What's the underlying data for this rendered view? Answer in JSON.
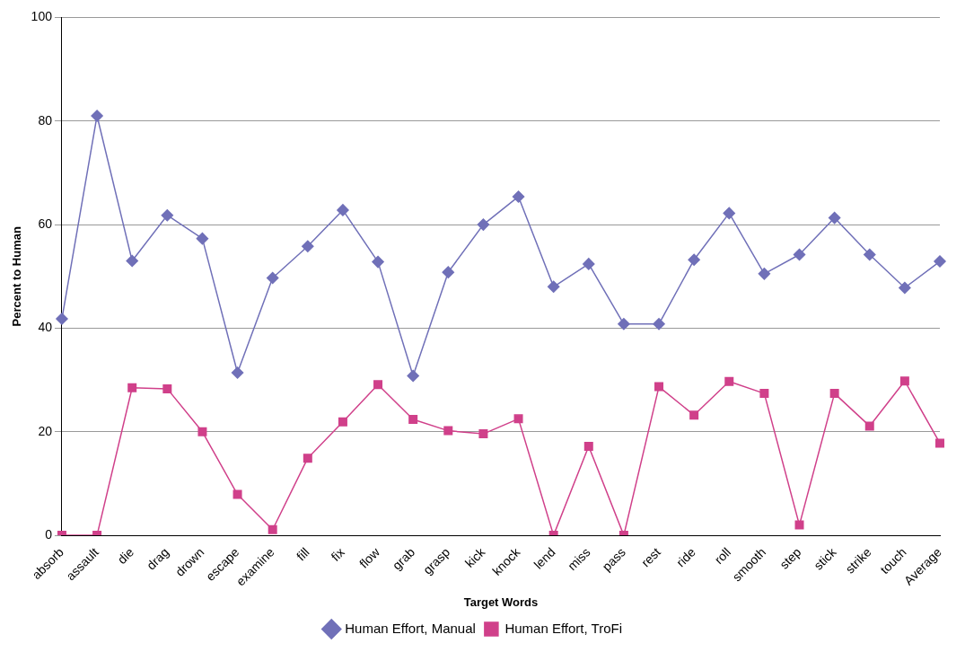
{
  "chart_data": {
    "type": "line",
    "xlabel": "Target Words",
    "ylabel": "Percent to Human",
    "categories": [
      "absorb",
      "assault",
      "die",
      "drag",
      "drown",
      "escape",
      "examine",
      "fill",
      "fix",
      "flow",
      "grab",
      "grasp",
      "kick",
      "knock",
      "lend",
      "miss",
      "pass",
      "rest",
      "ride",
      "roll",
      "smooth",
      "step",
      "stick",
      "strike",
      "touch",
      "Average"
    ],
    "series": [
      {
        "name": "Human Effort, Manual",
        "color": "#7070b8",
        "marker": "diamond",
        "values": [
          41.8,
          81,
          53,
          61.8,
          57.3,
          31.4,
          49.7,
          55.8,
          62.8,
          52.8,
          30.8,
          50.8,
          60,
          65.4,
          48,
          52.4,
          40.8,
          40.8,
          53.2,
          62.2,
          50.5,
          54.2,
          61.3,
          54.2,
          47.8,
          52.9
        ]
      },
      {
        "name": "Human Effort, TroFi",
        "color": "#d0408a",
        "marker": "square",
        "values": [
          0,
          0,
          28.5,
          28.3,
          20,
          7.9,
          1.1,
          14.9,
          21.9,
          29.1,
          22.4,
          20.2,
          19.6,
          22.5,
          0,
          17.2,
          0,
          28.7,
          23.2,
          29.7,
          27.4,
          2,
          27.4,
          21.1,
          29.8,
          17.8
        ]
      }
    ],
    "ylim": [
      0,
      100
    ],
    "yticks": [
      0,
      20,
      40,
      60,
      80,
      100
    ],
    "grid": "y",
    "legend": "bottom"
  }
}
